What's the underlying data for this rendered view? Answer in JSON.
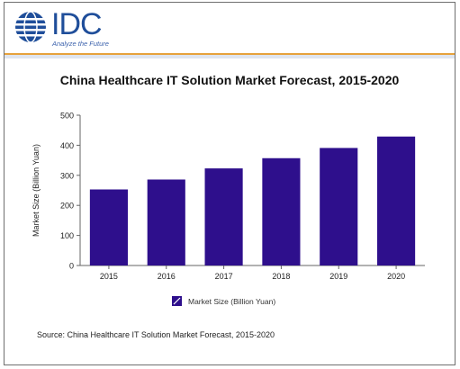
{
  "logo": {
    "name": "IDC",
    "tagline": "Analyze the Future"
  },
  "colors": {
    "bar": "#2e0f8c",
    "axis": "#666666",
    "accent_band": "#e6a23c",
    "logo_blue": "#1f4e9a"
  },
  "chart_data": {
    "type": "bar",
    "title": "China Healthcare IT Solution Market Forecast, 2015-2020",
    "xlabel": "",
    "ylabel": "Market Size (Billion Yuan)",
    "categories": [
      "2015",
      "2016",
      "2017",
      "2018",
      "2019",
      "2020"
    ],
    "series": [
      {
        "name": "Market Size (Billion Yuan)",
        "values": [
          253,
          286,
          323,
          357,
          391,
          429
        ]
      }
    ],
    "ylim": [
      0,
      500
    ],
    "yticks": [
      "0",
      "100",
      "200",
      "300",
      "400",
      "500"
    ],
    "grid": false,
    "legend": "bottom"
  },
  "source": "Source: China Healthcare IT Solution Market Forecast, 2015-2020"
}
